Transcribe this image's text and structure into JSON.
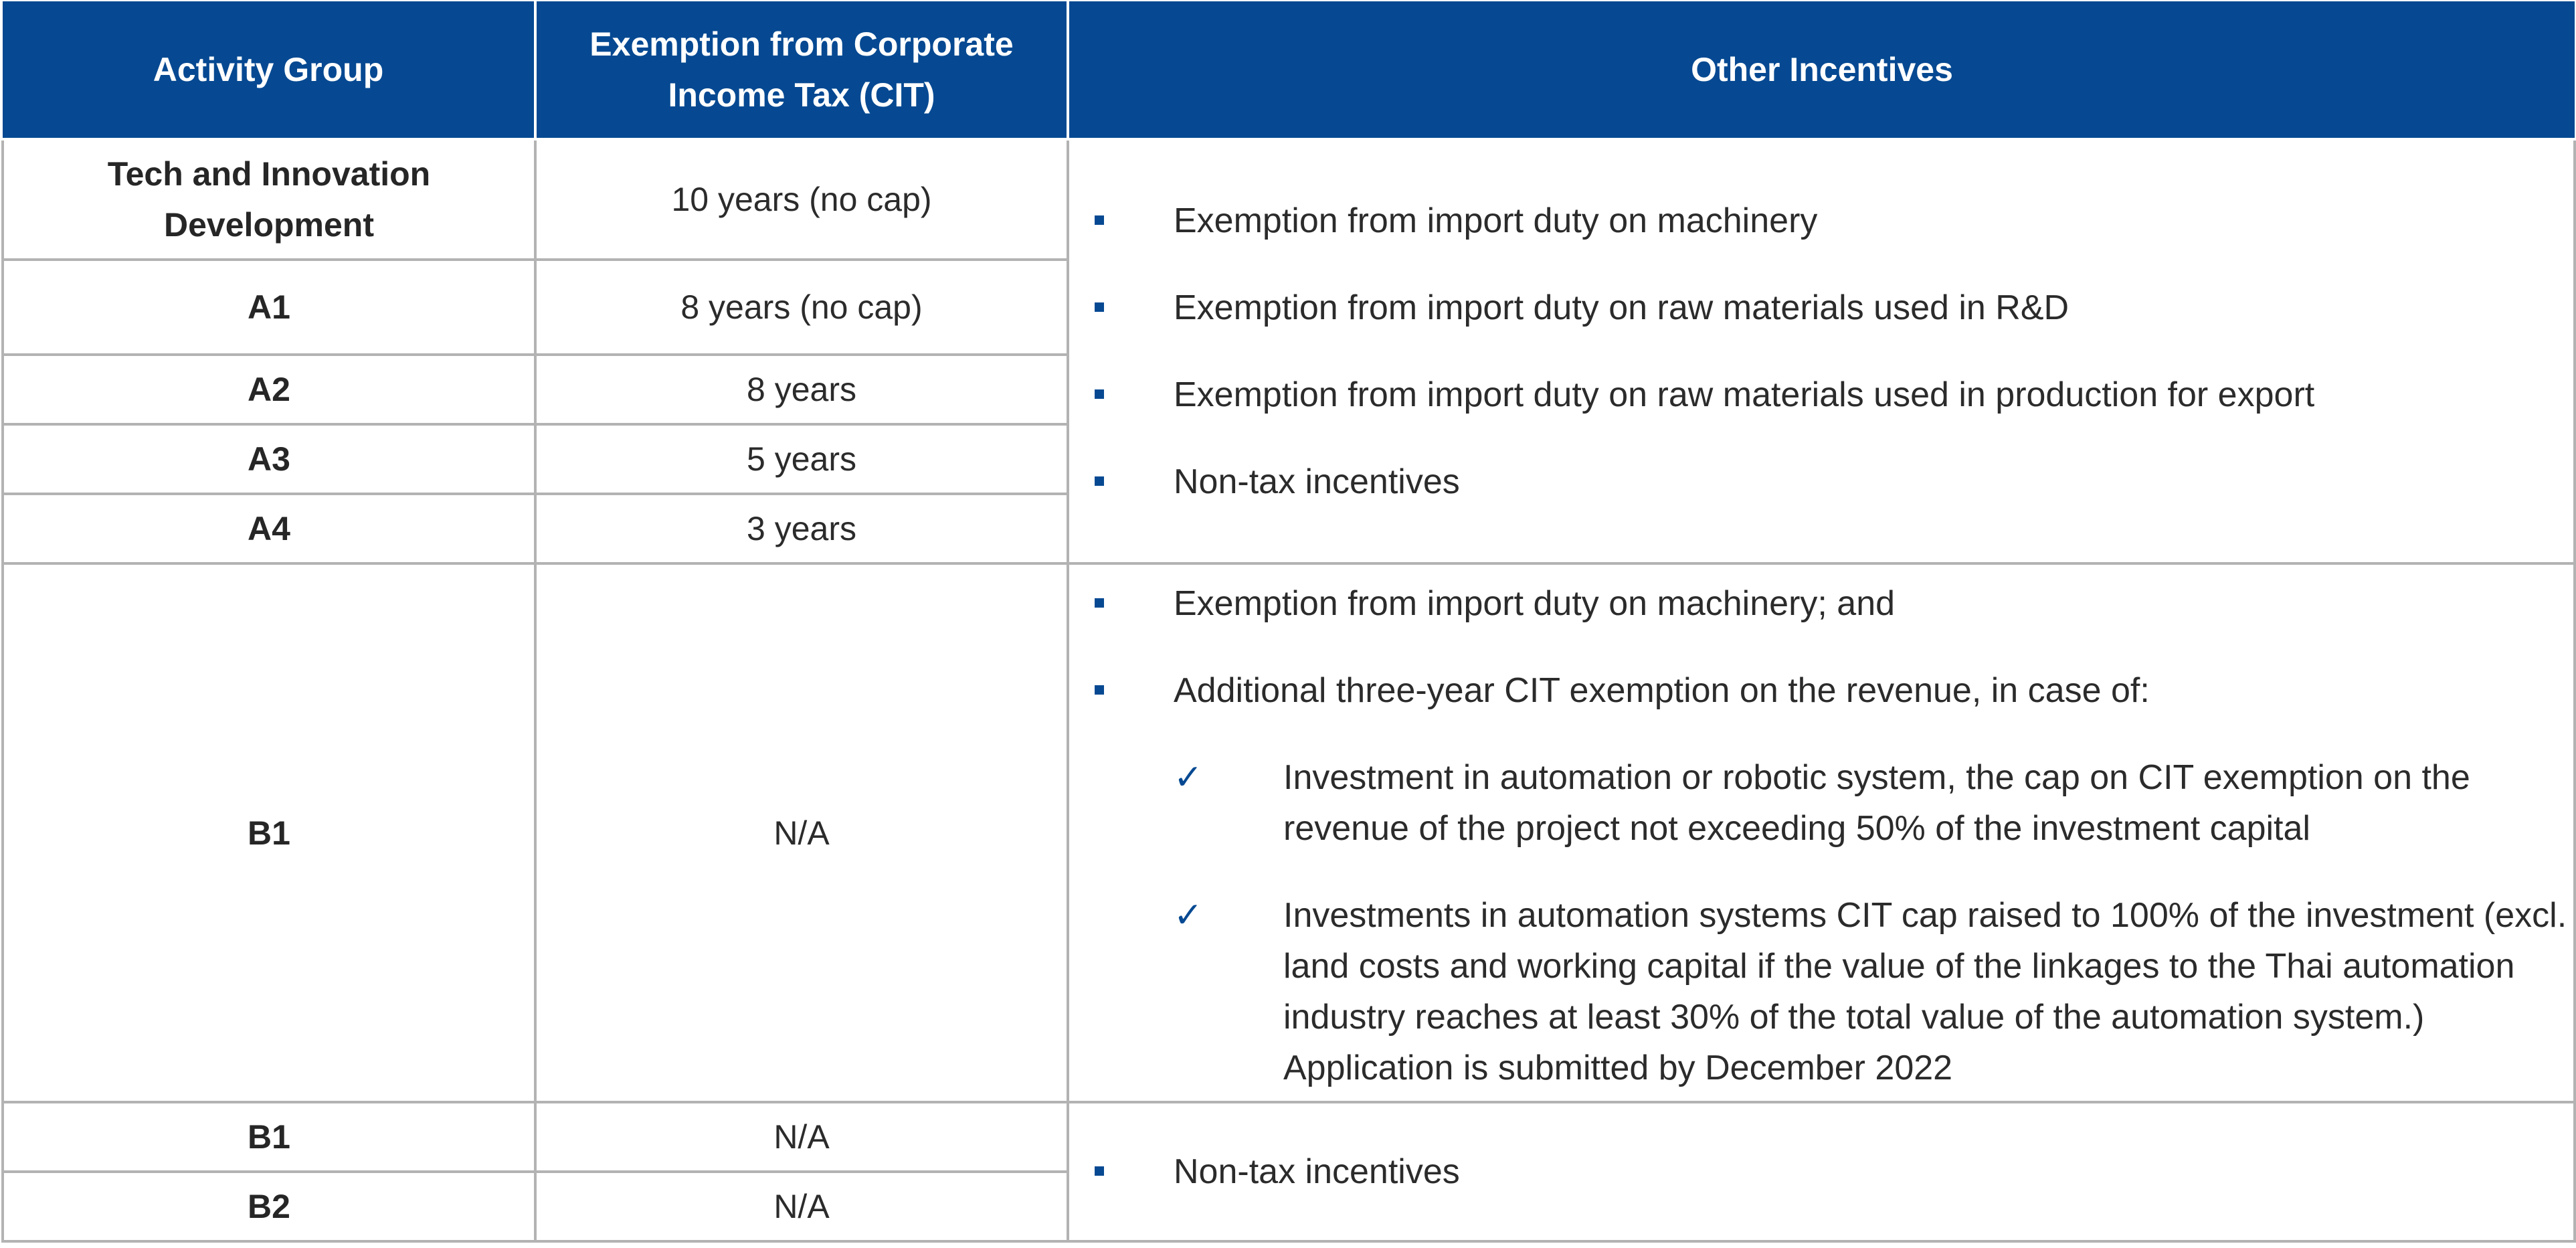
{
  "header": {
    "col1": "Activity Group",
    "col2": "Exemption from Corporate Income Tax (CIT)",
    "col3": "Other Incentives"
  },
  "rows": [
    {
      "group": "Tech and Innovation Development",
      "cit": "10 years (no cap)"
    },
    {
      "group": "A1",
      "cit": "8 years (no cap)"
    },
    {
      "group": "A2",
      "cit": "8 years"
    },
    {
      "group": "A3",
      "cit": "5 years"
    },
    {
      "group": "A4",
      "cit": "3 years"
    },
    {
      "group": "B1",
      "cit": "N/A"
    },
    {
      "group": "B1",
      "cit": "N/A"
    },
    {
      "group": "B2",
      "cit": "N/A"
    }
  ],
  "incentives": {
    "block1": [
      "Exemption from import duty on machinery",
      "Exemption from import duty on raw materials used in R&D",
      "Exemption from import duty on raw materials used in production for export",
      "Non-tax incentives"
    ],
    "block2": {
      "item1": "Exemption from import duty on machinery; and",
      "item2": "Additional three-year CIT exemption on the revenue, in case of:",
      "checks": [
        "Investment in automation or robotic system, the cap on CIT exemption on the revenue of the project not exceeding 50% of the investment capital",
        "Investments in automation systems CIT cap raised to 100% of the investment (excl. land costs and working capital if the value of the linkages to the Thai automation industry reaches at least 30% of the total value of the automation system.) Application is submitted by December 2022"
      ]
    },
    "block3": [
      "Non-tax incentives"
    ]
  },
  "icons": {
    "bullet": "square-bullet-icon",
    "check": "checkmark-icon",
    "check_glyph": "✓"
  },
  "colors": {
    "header_bg": "#064992",
    "header_text": "#ffffff",
    "bullet": "#064992",
    "border": "#b3b3b3"
  }
}
